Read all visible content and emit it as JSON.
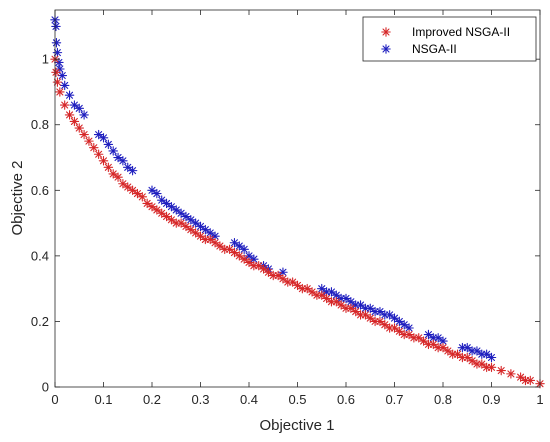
{
  "chart_data": {
    "type": "scatter",
    "xlabel": "Objective 1",
    "ylabel": "Objective 2",
    "xlim": [
      0,
      1
    ],
    "ylim": [
      0,
      1.15
    ],
    "xticks": [
      0,
      0.1,
      0.2,
      0.3,
      0.4,
      0.5,
      0.6,
      0.7,
      0.8,
      0.9,
      1
    ],
    "yticks": [
      0,
      0.2,
      0.4,
      0.6,
      0.8,
      1
    ],
    "xtick_labels": [
      "0",
      "0.1",
      "0.2",
      "0.3",
      "0.4",
      "0.5",
      "0.6",
      "0.7",
      "0.8",
      "0.9",
      "1"
    ],
    "ytick_labels": [
      "0",
      "0.2",
      "0.4",
      "0.6",
      "0.8",
      "1"
    ],
    "grid": false,
    "legend_position": "top-right",
    "marker": "asterisk",
    "series": [
      {
        "name": "Improved NSGA-II",
        "color": "#d62728",
        "points": [
          [
            0.0,
            1.0
          ],
          [
            0.002,
            0.96
          ],
          [
            0.005,
            0.93
          ],
          [
            0.01,
            0.9
          ],
          [
            0.02,
            0.86
          ],
          [
            0.03,
            0.83
          ],
          [
            0.04,
            0.81
          ],
          [
            0.05,
            0.79
          ],
          [
            0.06,
            0.77
          ],
          [
            0.07,
            0.75
          ],
          [
            0.08,
            0.73
          ],
          [
            0.09,
            0.71
          ],
          [
            0.1,
            0.69
          ],
          [
            0.11,
            0.67
          ],
          [
            0.12,
            0.65
          ],
          [
            0.13,
            0.64
          ],
          [
            0.14,
            0.62
          ],
          [
            0.15,
            0.61
          ],
          [
            0.16,
            0.6
          ],
          [
            0.17,
            0.59
          ],
          [
            0.18,
            0.58
          ],
          [
            0.19,
            0.56
          ],
          [
            0.2,
            0.55
          ],
          [
            0.21,
            0.54
          ],
          [
            0.22,
            0.53
          ],
          [
            0.23,
            0.52
          ],
          [
            0.24,
            0.51
          ],
          [
            0.25,
            0.5
          ],
          [
            0.26,
            0.5
          ],
          [
            0.27,
            0.49
          ],
          [
            0.28,
            0.48
          ],
          [
            0.29,
            0.47
          ],
          [
            0.3,
            0.46
          ],
          [
            0.31,
            0.45
          ],
          [
            0.32,
            0.45
          ],
          [
            0.33,
            0.44
          ],
          [
            0.34,
            0.43
          ],
          [
            0.35,
            0.42
          ],
          [
            0.36,
            0.42
          ],
          [
            0.37,
            0.41
          ],
          [
            0.38,
            0.4
          ],
          [
            0.39,
            0.39
          ],
          [
            0.4,
            0.38
          ],
          [
            0.41,
            0.37
          ],
          [
            0.42,
            0.37
          ],
          [
            0.43,
            0.36
          ],
          [
            0.44,
            0.35
          ],
          [
            0.45,
            0.34
          ],
          [
            0.46,
            0.34
          ],
          [
            0.47,
            0.33
          ],
          [
            0.48,
            0.32
          ],
          [
            0.49,
            0.32
          ],
          [
            0.5,
            0.31
          ],
          [
            0.51,
            0.3
          ],
          [
            0.52,
            0.3
          ],
          [
            0.53,
            0.29
          ],
          [
            0.54,
            0.28
          ],
          [
            0.55,
            0.28
          ],
          [
            0.56,
            0.27
          ],
          [
            0.57,
            0.26
          ],
          [
            0.58,
            0.26
          ],
          [
            0.59,
            0.25
          ],
          [
            0.6,
            0.24
          ],
          [
            0.61,
            0.24
          ],
          [
            0.62,
            0.23
          ],
          [
            0.63,
            0.22
          ],
          [
            0.64,
            0.22
          ],
          [
            0.65,
            0.21
          ],
          [
            0.66,
            0.2
          ],
          [
            0.67,
            0.2
          ],
          [
            0.68,
            0.19
          ],
          [
            0.69,
            0.18
          ],
          [
            0.7,
            0.18
          ],
          [
            0.71,
            0.17
          ],
          [
            0.72,
            0.16
          ],
          [
            0.73,
            0.16
          ],
          [
            0.74,
            0.15
          ],
          [
            0.75,
            0.15
          ],
          [
            0.76,
            0.14
          ],
          [
            0.77,
            0.13
          ],
          [
            0.78,
            0.13
          ],
          [
            0.79,
            0.12
          ],
          [
            0.8,
            0.12
          ],
          [
            0.81,
            0.11
          ],
          [
            0.82,
            0.1
          ],
          [
            0.83,
            0.1
          ],
          [
            0.84,
            0.09
          ],
          [
            0.85,
            0.09
          ],
          [
            0.86,
            0.08
          ],
          [
            0.87,
            0.07
          ],
          [
            0.88,
            0.07
          ],
          [
            0.89,
            0.06
          ],
          [
            0.9,
            0.06
          ],
          [
            0.92,
            0.05
          ],
          [
            0.94,
            0.04
          ],
          [
            0.96,
            0.03
          ],
          [
            0.97,
            0.02
          ],
          [
            0.98,
            0.02
          ],
          [
            1.0,
            0.01
          ]
        ]
      },
      {
        "name": "NSGA-II",
        "color": "#1f1fbf",
        "points": [
          [
            0.0,
            1.12
          ],
          [
            0.002,
            1.1
          ],
          [
            0.003,
            1.05
          ],
          [
            0.005,
            1.02
          ],
          [
            0.008,
            0.99
          ],
          [
            0.01,
            0.97
          ],
          [
            0.015,
            0.95
          ],
          [
            0.02,
            0.92
          ],
          [
            0.03,
            0.89
          ],
          [
            0.04,
            0.86
          ],
          [
            0.05,
            0.85
          ],
          [
            0.06,
            0.83
          ],
          [
            0.09,
            0.77
          ],
          [
            0.1,
            0.76
          ],
          [
            0.11,
            0.74
          ],
          [
            0.12,
            0.72
          ],
          [
            0.13,
            0.7
          ],
          [
            0.14,
            0.69
          ],
          [
            0.15,
            0.67
          ],
          [
            0.16,
            0.66
          ],
          [
            0.2,
            0.6
          ],
          [
            0.21,
            0.59
          ],
          [
            0.22,
            0.57
          ],
          [
            0.23,
            0.56
          ],
          [
            0.24,
            0.55
          ],
          [
            0.25,
            0.54
          ],
          [
            0.26,
            0.53
          ],
          [
            0.27,
            0.52
          ],
          [
            0.28,
            0.51
          ],
          [
            0.29,
            0.5
          ],
          [
            0.3,
            0.49
          ],
          [
            0.31,
            0.48
          ],
          [
            0.32,
            0.47
          ],
          [
            0.33,
            0.46
          ],
          [
            0.37,
            0.44
          ],
          [
            0.38,
            0.43
          ],
          [
            0.39,
            0.42
          ],
          [
            0.4,
            0.4
          ],
          [
            0.41,
            0.39
          ],
          [
            0.43,
            0.37
          ],
          [
            0.44,
            0.36
          ],
          [
            0.47,
            0.35
          ],
          [
            0.55,
            0.3
          ],
          [
            0.56,
            0.29
          ],
          [
            0.57,
            0.29
          ],
          [
            0.58,
            0.28
          ],
          [
            0.59,
            0.27
          ],
          [
            0.6,
            0.27
          ],
          [
            0.61,
            0.26
          ],
          [
            0.62,
            0.25
          ],
          [
            0.63,
            0.25
          ],
          [
            0.64,
            0.24
          ],
          [
            0.65,
            0.24
          ],
          [
            0.66,
            0.23
          ],
          [
            0.67,
            0.23
          ],
          [
            0.68,
            0.22
          ],
          [
            0.69,
            0.22
          ],
          [
            0.7,
            0.21
          ],
          [
            0.71,
            0.2
          ],
          [
            0.72,
            0.19
          ],
          [
            0.73,
            0.18
          ],
          [
            0.77,
            0.16
          ],
          [
            0.78,
            0.15
          ],
          [
            0.79,
            0.15
          ],
          [
            0.8,
            0.14
          ],
          [
            0.84,
            0.12
          ],
          [
            0.85,
            0.12
          ],
          [
            0.86,
            0.11
          ],
          [
            0.87,
            0.11
          ],
          [
            0.88,
            0.1
          ],
          [
            0.89,
            0.1
          ],
          [
            0.9,
            0.09
          ]
        ]
      }
    ]
  }
}
